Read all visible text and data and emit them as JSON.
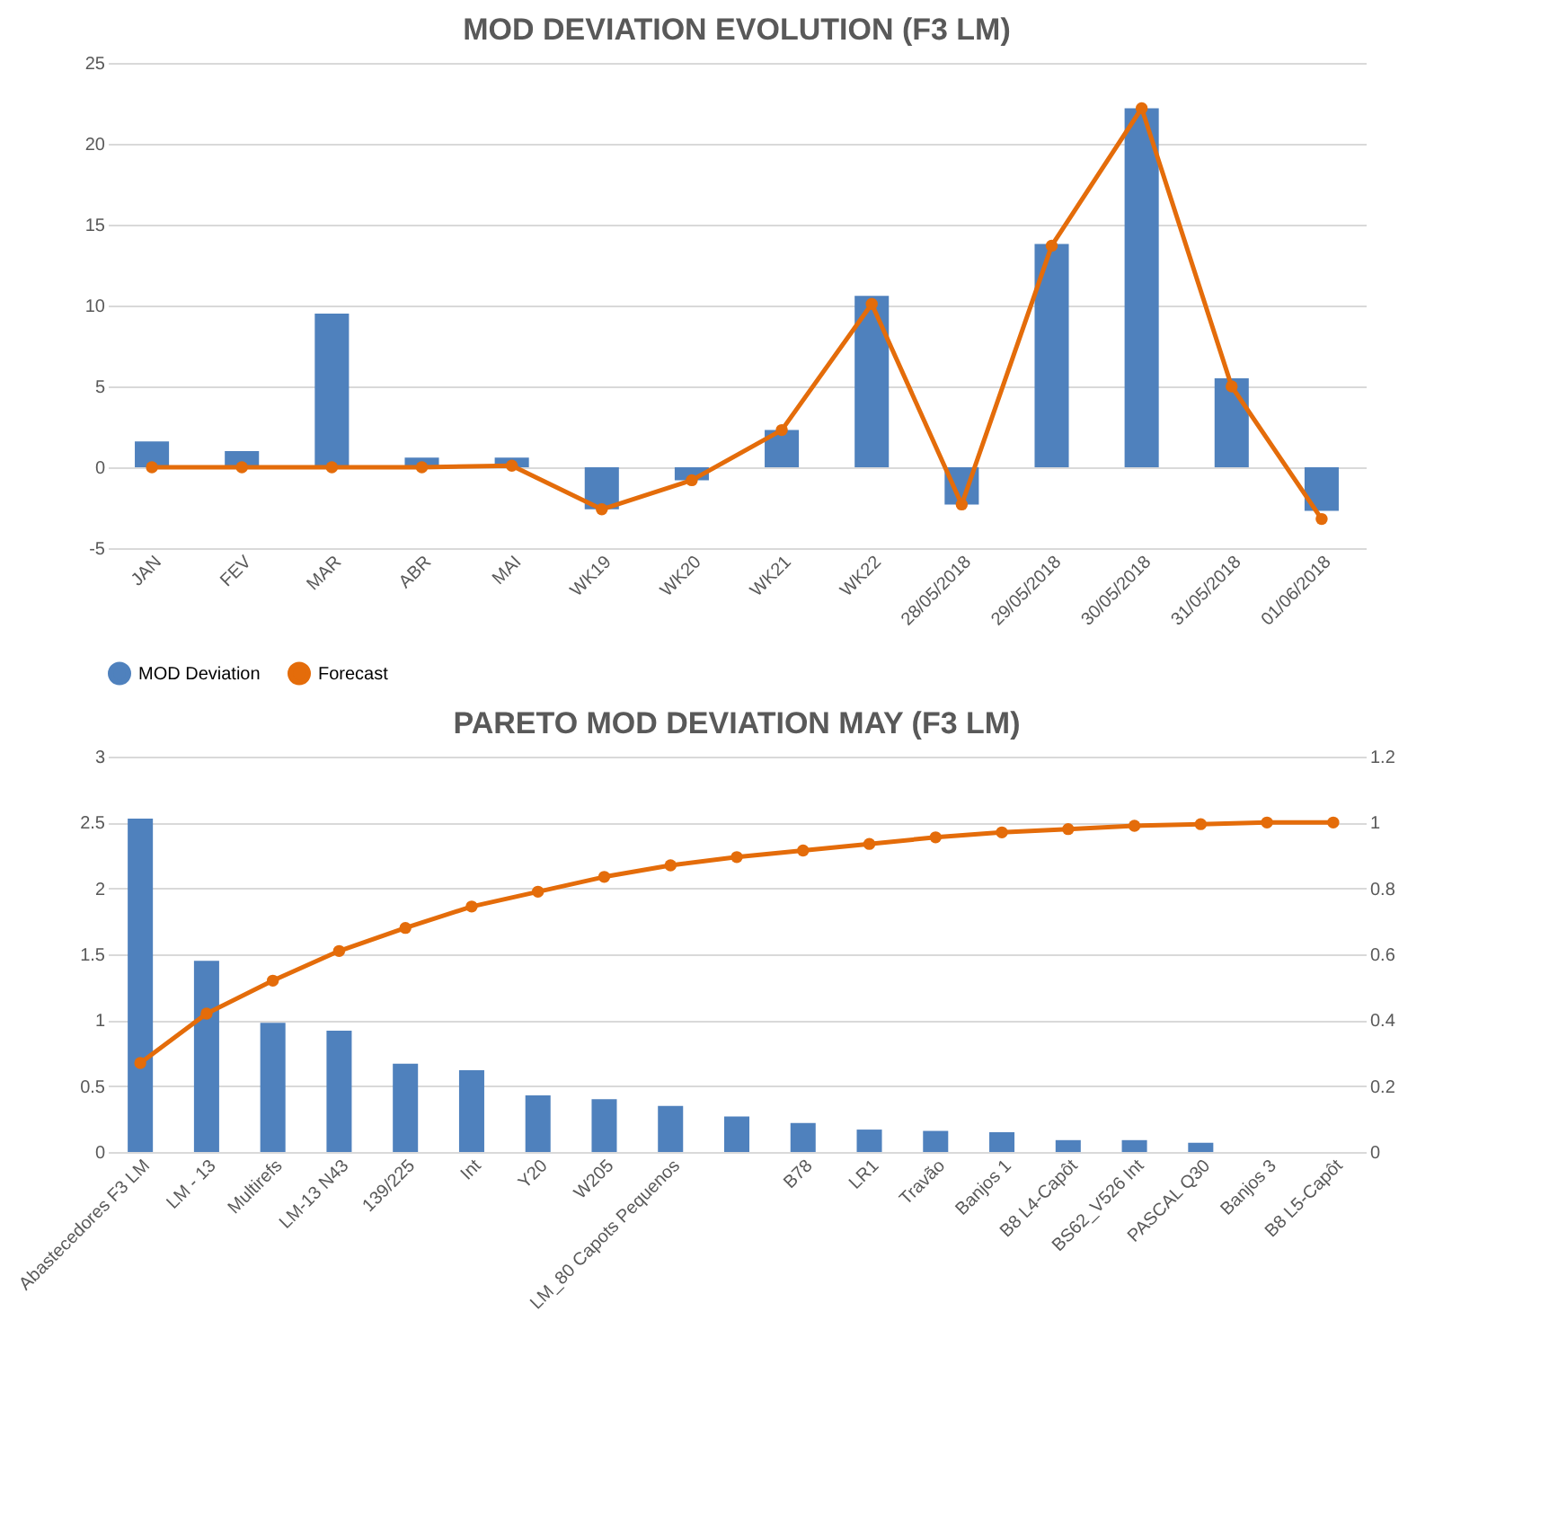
{
  "chart_data": [
    {
      "type": "bar",
      "title": "MOD DEVIATION EVOLUTION (F3 LM)",
      "categories": [
        "JAN",
        "FEV",
        "MAR",
        "ABR",
        "MAI",
        "WK19",
        "WK20",
        "WK21",
        "WK22",
        "28/05/2018",
        "29/05/2018",
        "30/05/2018",
        "31/05/2018",
        "01/06/2018"
      ],
      "series": [
        {
          "name": "MOD Deviation",
          "color": "#4f81bd",
          "values": [
            1.6,
            1.0,
            9.5,
            0.6,
            0.6,
            -2.6,
            -0.8,
            2.3,
            10.6,
            -2.3,
            13.8,
            22.2,
            5.5,
            -2.7
          ]
        },
        {
          "name": "Forecast",
          "type": "line",
          "color": "#e46c0a",
          "marker": "circle",
          "values": [
            0,
            0,
            0,
            0,
            0.1,
            -2.6,
            -0.8,
            2.3,
            10.1,
            -2.3,
            13.7,
            22.2,
            5.0,
            -3.2
          ]
        }
      ],
      "ylim": [
        -5,
        25
      ],
      "yticks": [
        -5,
        0,
        5,
        10,
        15,
        20,
        25
      ],
      "grid": "y",
      "legend": "bottom"
    },
    {
      "type": "bar",
      "title": "PARETO MOD DEVIATION MAY (F3 LM)",
      "categories": [
        "Abastecedores F3 LM",
        "LM - 13",
        "Multirefs",
        "LM-13 N43",
        "139/225",
        "Int",
        "Y20",
        "W205",
        "LM_80 Capots Pequenos",
        null,
        "B78",
        "LR1",
        "Travão",
        "Banjos 1",
        "B8 L4-Capôt",
        "BS62_V526 Int",
        "PASCAL Q30",
        "Banjos 3",
        "B8 L5-Capôt"
      ],
      "series": [
        {
          "color": "#4f81bd",
          "values": [
            2.53,
            1.45,
            0.98,
            0.92,
            0.67,
            0.62,
            0.43,
            0.4,
            0.35,
            0.27,
            0.22,
            0.17,
            0.16,
            0.15,
            0.09,
            0.09,
            0.07,
            0,
            0
          ]
        },
        {
          "type": "line",
          "axis": "y2",
          "color": "#e46c0a",
          "marker": "circle",
          "values": [
            0.27,
            0.42,
            0.52,
            0.61,
            0.68,
            0.745,
            0.79,
            0.835,
            0.87,
            0.895,
            0.915,
            0.935,
            0.955,
            0.97,
            0.98,
            0.99,
            0.995,
            1.0,
            1.0
          ]
        }
      ],
      "ylim": [
        0,
        3
      ],
      "yticks": [
        0,
        0.5,
        1,
        1.5,
        2,
        2.5,
        3
      ],
      "y2lim": [
        0,
        1.2
      ],
      "y2ticks": [
        0,
        0.2,
        0.4,
        0.6,
        0.8,
        1,
        1.2
      ],
      "grid": "y",
      "legend": false
    }
  ]
}
